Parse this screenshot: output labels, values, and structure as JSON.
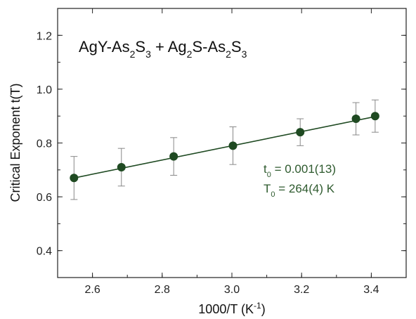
{
  "colors": {
    "series": "#1f4a22",
    "errorbar": "#888888",
    "axis": "#222222",
    "annotation": "#2e5a2e"
  },
  "chart_data": {
    "type": "scatter",
    "title_parts": [
      {
        "t": "AgY-As",
        "sub": false
      },
      {
        "t": "2",
        "sub": true
      },
      {
        "t": "S",
        "sub": false
      },
      {
        "t": "3",
        "sub": true
      },
      {
        "t": " + Ag",
        "sub": false
      },
      {
        "t": "2",
        "sub": true
      },
      {
        "t": "S-As",
        "sub": false
      },
      {
        "t": "2",
        "sub": true
      },
      {
        "t": "S",
        "sub": false
      },
      {
        "t": "3",
        "sub": true
      }
    ],
    "xlabel_main": "1000/T (K",
    "xlabel_sup": "-1",
    "xlabel_end": ")",
    "ylabel": "Critical Exponent  t(T)",
    "xlim": [
      2.5,
      3.5
    ],
    "ylim": [
      0.3,
      1.3
    ],
    "xticks": [
      "2.6",
      "2.8",
      "3.0",
      "3.2",
      "3.4"
    ],
    "yticks": [
      "0.4",
      "0.6",
      "0.8",
      "1.0",
      "1.2"
    ],
    "series": [
      {
        "x": [
          2.547,
          2.683,
          2.833,
          3.003,
          3.196,
          3.356,
          3.411
        ],
        "y": [
          0.67,
          0.71,
          0.75,
          0.79,
          0.84,
          0.89,
          0.9
        ],
        "err": [
          0.08,
          0.07,
          0.07,
          0.07,
          0.05,
          0.06,
          0.06
        ]
      }
    ],
    "fit_line": {
      "x": [
        2.547,
        3.411
      ],
      "y": [
        0.67,
        0.898
      ]
    },
    "annotations": [
      {
        "main": "t",
        "sub": "0",
        "rest": " = 0.001(13)"
      },
      {
        "main": "T",
        "sub": "0",
        "rest": " = 264(4) K"
      }
    ]
  }
}
